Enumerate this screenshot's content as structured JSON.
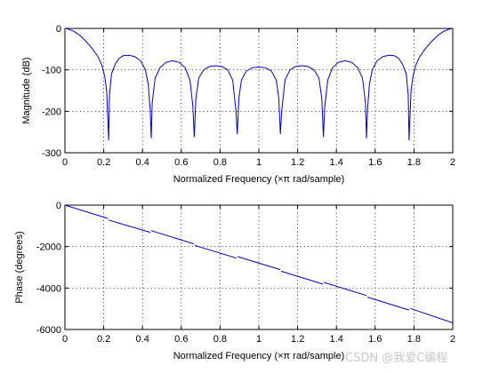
{
  "chart_data": [
    {
      "type": "line",
      "xlabel": "Normalized Frequency  (×π rad/sample)",
      "ylabel": "Magnitude (dB)",
      "xlim": [
        0,
        2
      ],
      "ylim": [
        -300,
        0
      ],
      "xticks": [
        "0",
        "0.2",
        "0.4",
        "0.6",
        "0.8",
        "1",
        "1.2",
        "1.4",
        "1.6",
        "1.8",
        "2"
      ],
      "yticks": [
        "0",
        "-100",
        "-200",
        "-300"
      ],
      "grid": true,
      "series": [
        {
          "color": "#0000c8",
          "points": [
            [
              0,
              0
            ],
            [
              0.02,
              -2
            ],
            [
              0.05,
              -8
            ],
            [
              0.08,
              -18
            ],
            [
              0.11,
              -32
            ],
            [
              0.14,
              -48
            ],
            [
              0.17,
              -68
            ],
            [
              0.19,
              -88
            ],
            [
              0.205,
              -115
            ],
            [
              0.215,
              -150
            ],
            [
              0.222,
              -230
            ],
            [
              0.225,
              -270
            ],
            [
              0.23,
              -160
            ],
            [
              0.24,
              -110
            ],
            [
              0.26,
              -85
            ],
            [
              0.28,
              -72
            ],
            [
              0.3,
              -66
            ],
            [
              0.33,
              -65
            ],
            [
              0.36,
              -68
            ],
            [
              0.39,
              -78
            ],
            [
              0.415,
              -100
            ],
            [
              0.43,
              -135
            ],
            [
              0.44,
              -200
            ],
            [
              0.445,
              -265
            ],
            [
              0.45,
              -180
            ],
            [
              0.465,
              -120
            ],
            [
              0.49,
              -95
            ],
            [
              0.52,
              -82
            ],
            [
              0.555,
              -78
            ],
            [
              0.59,
              -82
            ],
            [
              0.62,
              -95
            ],
            [
              0.645,
              -125
            ],
            [
              0.66,
              -190
            ],
            [
              0.667,
              -262
            ],
            [
              0.675,
              -170
            ],
            [
              0.69,
              -120
            ],
            [
              0.715,
              -100
            ],
            [
              0.745,
              -92
            ],
            [
              0.778,
              -90
            ],
            [
              0.81,
              -92
            ],
            [
              0.84,
              -100
            ],
            [
              0.865,
              -125
            ],
            [
              0.882,
              -200
            ],
            [
              0.889,
              -255
            ],
            [
              0.897,
              -170
            ],
            [
              0.91,
              -125
            ],
            [
              0.935,
              -103
            ],
            [
              0.965,
              -95
            ],
            [
              1.0,
              -93
            ],
            [
              1.035,
              -95
            ],
            [
              1.065,
              -103
            ],
            [
              1.09,
              -125
            ],
            [
              1.103,
              -170
            ],
            [
              1.111,
              -255
            ],
            [
              1.118,
              -200
            ],
            [
              1.135,
              -125
            ],
            [
              1.16,
              -100
            ],
            [
              1.19,
              -92
            ],
            [
              1.222,
              -90
            ],
            [
              1.255,
              -92
            ],
            [
              1.285,
              -100
            ],
            [
              1.31,
              -120
            ],
            [
              1.325,
              -170
            ],
            [
              1.333,
              -262
            ],
            [
              1.34,
              -190
            ],
            [
              1.355,
              -125
            ],
            [
              1.38,
              -95
            ],
            [
              1.41,
              -82
            ],
            [
              1.445,
              -78
            ],
            [
              1.48,
              -82
            ],
            [
              1.51,
              -95
            ],
            [
              1.535,
              -120
            ],
            [
              1.55,
              -180
            ],
            [
              1.555,
              -265
            ],
            [
              1.56,
              -200
            ],
            [
              1.57,
              -135
            ],
            [
              1.585,
              -100
            ],
            [
              1.61,
              -78
            ],
            [
              1.64,
              -68
            ],
            [
              1.67,
              -65
            ],
            [
              1.7,
              -66
            ],
            [
              1.72,
              -72
            ],
            [
              1.74,
              -85
            ],
            [
              1.76,
              -110
            ],
            [
              1.77,
              -160
            ],
            [
              1.775,
              -270
            ],
            [
              1.778,
              -230
            ],
            [
              1.785,
              -150
            ],
            [
              1.795,
              -115
            ],
            [
              1.81,
              -88
            ],
            [
              1.83,
              -68
            ],
            [
              1.86,
              -48
            ],
            [
              1.89,
              -32
            ],
            [
              1.92,
              -18
            ],
            [
              1.95,
              -8
            ],
            [
              1.98,
              -2
            ],
            [
              2.0,
              0
            ]
          ]
        }
      ]
    },
    {
      "type": "line",
      "xlabel": "Normalized Frequency  (×π rad/sample)",
      "ylabel": "Phase (degrees)",
      "xlim": [
        0,
        2
      ],
      "ylim": [
        -6000,
        0
      ],
      "xticks": [
        "0",
        "0.2",
        "0.4",
        "0.6",
        "0.8",
        "1",
        "1.2",
        "1.4",
        "1.6",
        "1.8",
        "2"
      ],
      "yticks": [
        "0",
        "-2000",
        "-4000",
        "-6000"
      ],
      "grid": true,
      "segments": [
        [
          [
            0,
            0
          ],
          [
            0.22,
            -640
          ]
        ],
        [
          [
            0.225,
            -720
          ],
          [
            0.44,
            -1310
          ]
        ],
        [
          [
            0.445,
            -1230
          ],
          [
            0.665,
            -1870
          ]
        ],
        [
          [
            0.67,
            -1940
          ],
          [
            0.885,
            -2560
          ]
        ],
        [
          [
            0.89,
            -2480
          ],
          [
            1.11,
            -3110
          ]
        ],
        [
          [
            1.115,
            -3190
          ],
          [
            1.33,
            -3810
          ]
        ],
        [
          [
            1.335,
            -3730
          ],
          [
            1.555,
            -4360
          ]
        ],
        [
          [
            1.56,
            -4440
          ],
          [
            1.775,
            -5060
          ]
        ],
        [
          [
            1.78,
            -4980
          ],
          [
            2.0,
            -5680
          ]
        ]
      ],
      "color": "#0000c8"
    }
  ],
  "watermark": "CSDN @我爱C编程"
}
